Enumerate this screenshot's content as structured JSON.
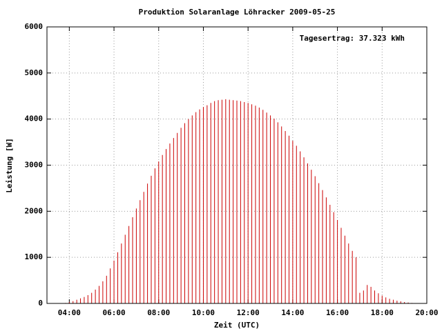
{
  "chart_data": {
    "type": "impulse",
    "title": "Produktion Solaranlage Löhracker 2009-05-25",
    "annotation": "Tagesertrag: 37.323 kWh",
    "x_label": "Zeit (UTC)",
    "y_label": "Leistung [W]",
    "color": "#cc0000",
    "grid": true,
    "x": [
      230,
      240,
      250,
      260,
      270,
      280,
      290,
      300,
      310,
      320,
      330,
      340,
      350,
      360,
      370,
      380,
      390,
      400,
      410,
      420,
      430,
      440,
      450,
      460,
      470,
      480,
      490,
      500,
      510,
      520,
      530,
      540,
      550,
      560,
      570,
      580,
      590,
      600,
      610,
      620,
      630,
      640,
      650,
      660,
      670,
      680,
      690,
      700,
      710,
      720,
      730,
      740,
      750,
      760,
      770,
      780,
      790,
      800,
      810,
      820,
      830,
      840,
      850,
      860,
      870,
      880,
      890,
      900,
      910,
      920,
      930,
      940,
      950,
      960,
      970,
      980,
      990,
      1000,
      1010,
      1020,
      1030,
      1040,
      1050,
      1060,
      1070,
      1080,
      1090,
      1100,
      1110,
      1120,
      1130,
      1140,
      1150,
      1160,
      1170
    ],
    "values": [
      10,
      30,
      50,
      80,
      110,
      140,
      180,
      230,
      300,
      380,
      480,
      600,
      760,
      930,
      1110,
      1300,
      1490,
      1680,
      1870,
      2060,
      2240,
      2420,
      2600,
      2770,
      2930,
      3080,
      3220,
      3350,
      3470,
      3590,
      3700,
      3810,
      3910,
      4000,
      4080,
      4150,
      4210,
      4260,
      4300,
      4350,
      4390,
      4410,
      4420,
      4430,
      4420,
      4410,
      4400,
      4390,
      4370,
      4350,
      4320,
      4290,
      4250,
      4200,
      4140,
      4080,
      4010,
      3930,
      3840,
      3740,
      3640,
      3530,
      3420,
      3300,
      3170,
      3040,
      2900,
      2760,
      2610,
      2460,
      2300,
      2140,
      1980,
      1810,
      1640,
      1470,
      1300,
      1140,
      1000,
      230,
      280,
      400,
      360,
      280,
      220,
      170,
      130,
      100,
      80,
      60,
      45,
      30,
      20,
      10,
      5
    ],
    "xlim": [
      180,
      1200
    ],
    "xticks": [
      {
        "value": 240,
        "label": "04:00"
      },
      {
        "value": 360,
        "label": "06:00"
      },
      {
        "value": 480,
        "label": "08:00"
      },
      {
        "value": 600,
        "label": "10:00"
      },
      {
        "value": 720,
        "label": "12:00"
      },
      {
        "value": 840,
        "label": "14:00"
      },
      {
        "value": 960,
        "label": "16:00"
      },
      {
        "value": 1080,
        "label": "18:00"
      },
      {
        "value": 1200,
        "label": "20:00"
      }
    ],
    "ylim": [
      0,
      6000
    ],
    "yticks": [
      0,
      1000,
      2000,
      3000,
      4000,
      5000,
      6000
    ]
  }
}
